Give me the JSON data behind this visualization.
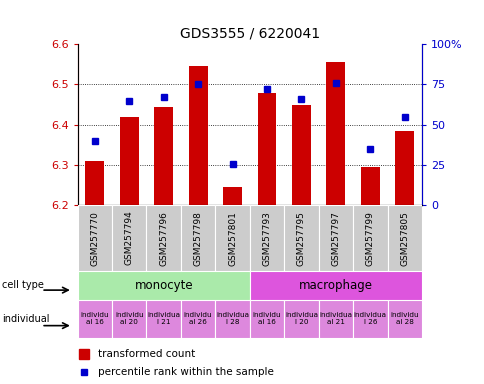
{
  "title": "GDS3555 / 6220041",
  "samples": [
    "GSM257770",
    "GSM257794",
    "GSM257796",
    "GSM257798",
    "GSM257801",
    "GSM257793",
    "GSM257795",
    "GSM257797",
    "GSM257799",
    "GSM257805"
  ],
  "transformed_counts": [
    6.31,
    6.42,
    6.445,
    6.545,
    6.245,
    6.48,
    6.45,
    6.555,
    6.295,
    6.385
  ],
  "percentile_ranks": [
    40,
    65,
    67,
    75,
    26,
    72,
    66,
    76,
    35,
    55
  ],
  "cell_types": [
    "monocyte",
    "monocyte",
    "monocyte",
    "monocyte",
    "monocyte",
    "macrophage",
    "macrophage",
    "macrophage",
    "macrophage",
    "macrophage"
  ],
  "individual_labels": [
    "individu\nal 16",
    "individu\nal 20",
    "individua\nl 21",
    "individu\nal 26",
    "individua\nl 28",
    "individu\nal 16",
    "individua\nl 20",
    "individua\nal 21",
    "individua\nl 26",
    "individu\nal 28"
  ],
  "ylim_left": [
    6.2,
    6.6
  ],
  "ylim_right": [
    0,
    100
  ],
  "bar_color": "#cc0000",
  "dot_color": "#0000cc",
  "monocyte_color": "#aaeaaa",
  "macrophage_color": "#dd55dd",
  "individual_color": "#dd88dd",
  "sample_bg_color": "#cccccc",
  "yticks_left": [
    6.2,
    6.3,
    6.4,
    6.5,
    6.6
  ],
  "yticks_right": [
    0,
    25,
    50,
    75,
    100
  ],
  "ytick_labels_right": [
    "0",
    "25",
    "50",
    "75",
    "100%"
  ]
}
